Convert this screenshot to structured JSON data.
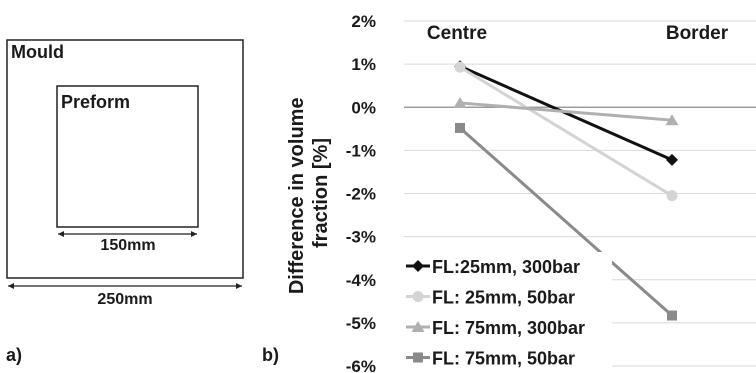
{
  "panel_a": {
    "label": "a)",
    "outer_label": "Mould",
    "inner_label": "Preform",
    "inner_dimension": "150mm",
    "outer_dimension": "250mm"
  },
  "panel_b": {
    "label": "b)"
  },
  "chart_data": {
    "type": "line",
    "categories": [
      "Centre",
      "Border"
    ],
    "ylabel": "Difference in volume fraction [%]",
    "ylim": [
      -6,
      2
    ],
    "yticks": [
      "2%",
      "1%",
      "0%",
      "-1%",
      "-2%",
      "-3%",
      "-4%",
      "-5%",
      "-6%"
    ],
    "grid": true,
    "legend_position": "bottom-left",
    "series": [
      {
        "name": "FL:25mm, 300bar",
        "values": [
          0.95,
          -1.22
        ],
        "color": "#111111",
        "marker": "diamond"
      },
      {
        "name": "FL: 25mm, 50bar",
        "values": [
          0.93,
          -2.05
        ],
        "color": "#d4d4d4",
        "marker": "circle"
      },
      {
        "name": "FL: 75mm, 300bar",
        "values": [
          0.1,
          -0.3
        ],
        "color": "#b0b0b0",
        "marker": "triangle"
      },
      {
        "name": "FL: 75mm, 50bar",
        "values": [
          -0.48,
          -4.83
        ],
        "color": "#8a8a8a",
        "marker": "square"
      }
    ]
  }
}
